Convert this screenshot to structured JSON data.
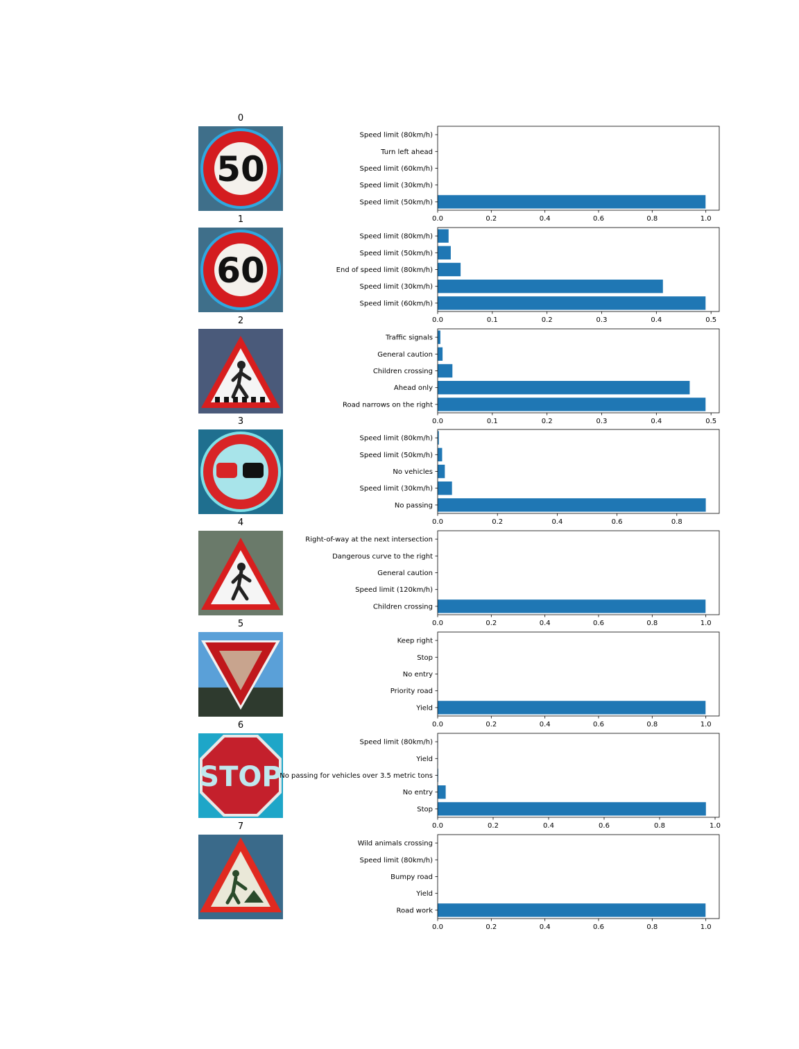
{
  "colors": {
    "bar": "#1f77b4",
    "axis": "#000000"
  },
  "chart_data": [
    {
      "type": "bar",
      "orientation": "horizontal",
      "title": "0",
      "categories": [
        "Speed limit (50km/h)",
        "Speed limit (30km/h)",
        "Speed limit (60km/h)",
        "Turn left ahead",
        "Speed limit (80km/h)"
      ],
      "values": [
        0.999,
        0.0003,
        0.0002,
        0.0001,
        0.0001
      ],
      "xlim": [
        0,
        1.05
      ],
      "xticks": [
        "0.0",
        "0.2",
        "0.4",
        "0.6",
        "0.8",
        "1.0"
      ]
    },
    {
      "type": "bar",
      "orientation": "horizontal",
      "title": "1",
      "categories": [
        "Speed limit (60km/h)",
        "Speed limit (30km/h)",
        "End of speed limit (80km/h)",
        "Speed limit (50km/h)",
        "Speed limit (80km/h)"
      ],
      "values": [
        0.49,
        0.412,
        0.042,
        0.024,
        0.02
      ],
      "xlim": [
        0,
        0.515
      ],
      "xticks": [
        "0.0",
        "0.1",
        "0.2",
        "0.3",
        "0.4",
        "0.5"
      ]
    },
    {
      "type": "bar",
      "orientation": "horizontal",
      "title": "2",
      "categories": [
        "Road narrows on the right",
        "Ahead only",
        "Children crossing",
        "General caution",
        "Traffic signals"
      ],
      "values": [
        0.49,
        0.461,
        0.027,
        0.009,
        0.005
      ],
      "xlim": [
        0,
        0.515
      ],
      "xticks": [
        "0.0",
        "0.1",
        "0.2",
        "0.3",
        "0.4",
        "0.5"
      ]
    },
    {
      "type": "bar",
      "orientation": "horizontal",
      "title": "3",
      "categories": [
        "No passing",
        "Speed limit (30km/h)",
        "No vehicles",
        "Speed limit (50km/h)",
        "Speed limit (80km/h)"
      ],
      "values": [
        0.897,
        0.048,
        0.024,
        0.015,
        0.004
      ],
      "xlim": [
        0,
        0.942
      ],
      "xticks": [
        "0.0",
        "0.2",
        "0.4",
        "0.6",
        "0.8"
      ]
    },
    {
      "type": "bar",
      "orientation": "horizontal",
      "title": "4",
      "categories": [
        "Children crossing",
        "Speed limit (120km/h)",
        "General caution",
        "Dangerous curve to the right",
        "Right-of-way at the next intersection"
      ],
      "values": [
        0.999,
        0.0003,
        0.0002,
        0.0001,
        0.0001
      ],
      "xlim": [
        0,
        1.05
      ],
      "xticks": [
        "0.0",
        "0.2",
        "0.4",
        "0.6",
        "0.8",
        "1.0"
      ]
    },
    {
      "type": "bar",
      "orientation": "horizontal",
      "title": "5",
      "categories": [
        "Yield",
        "Priority road",
        "No entry",
        "Stop",
        "Keep right"
      ],
      "values": [
        0.999,
        0.0003,
        0.0002,
        0.0001,
        0.0001
      ],
      "xlim": [
        0,
        1.05
      ],
      "xticks": [
        "0.0",
        "0.2",
        "0.4",
        "0.6",
        "0.8",
        "1.0"
      ]
    },
    {
      "type": "bar",
      "orientation": "horizontal",
      "title": "6",
      "categories": [
        "Stop",
        "No entry",
        "No passing for vehicles over 3.5 metric tons",
        "Yield",
        "Speed limit (80km/h)"
      ],
      "values": [
        0.967,
        0.029,
        0.002,
        0.001,
        0.001
      ],
      "xlim": [
        0,
        1.015
      ],
      "xticks": [
        "0.0",
        "0.2",
        "0.4",
        "0.6",
        "0.8",
        "1.0"
      ]
    },
    {
      "type": "bar",
      "orientation": "horizontal",
      "title": "7",
      "categories": [
        "Road work",
        "Yield",
        "Bumpy road",
        "Speed limit (80km/h)",
        "Wild animals crossing"
      ],
      "values": [
        0.999,
        0.0003,
        0.0002,
        0.0001,
        0.0001
      ],
      "xlim": [
        0,
        1.05
      ],
      "xticks": [
        "0.0",
        "0.2",
        "0.4",
        "0.6",
        "0.8",
        "1.0"
      ]
    }
  ],
  "signs": [
    {
      "title": "0",
      "kind": "speed-limit-sign",
      "text": "50"
    },
    {
      "title": "1",
      "kind": "speed-limit-sign",
      "text": "60"
    },
    {
      "title": "2",
      "kind": "pedestrian-crossing-sign"
    },
    {
      "title": "3",
      "kind": "no-passing-sign"
    },
    {
      "title": "4",
      "kind": "children-crossing-sign"
    },
    {
      "title": "5",
      "kind": "yield-sign"
    },
    {
      "title": "6",
      "kind": "stop-sign",
      "text": "STOP"
    },
    {
      "title": "7",
      "kind": "road-work-sign"
    }
  ]
}
